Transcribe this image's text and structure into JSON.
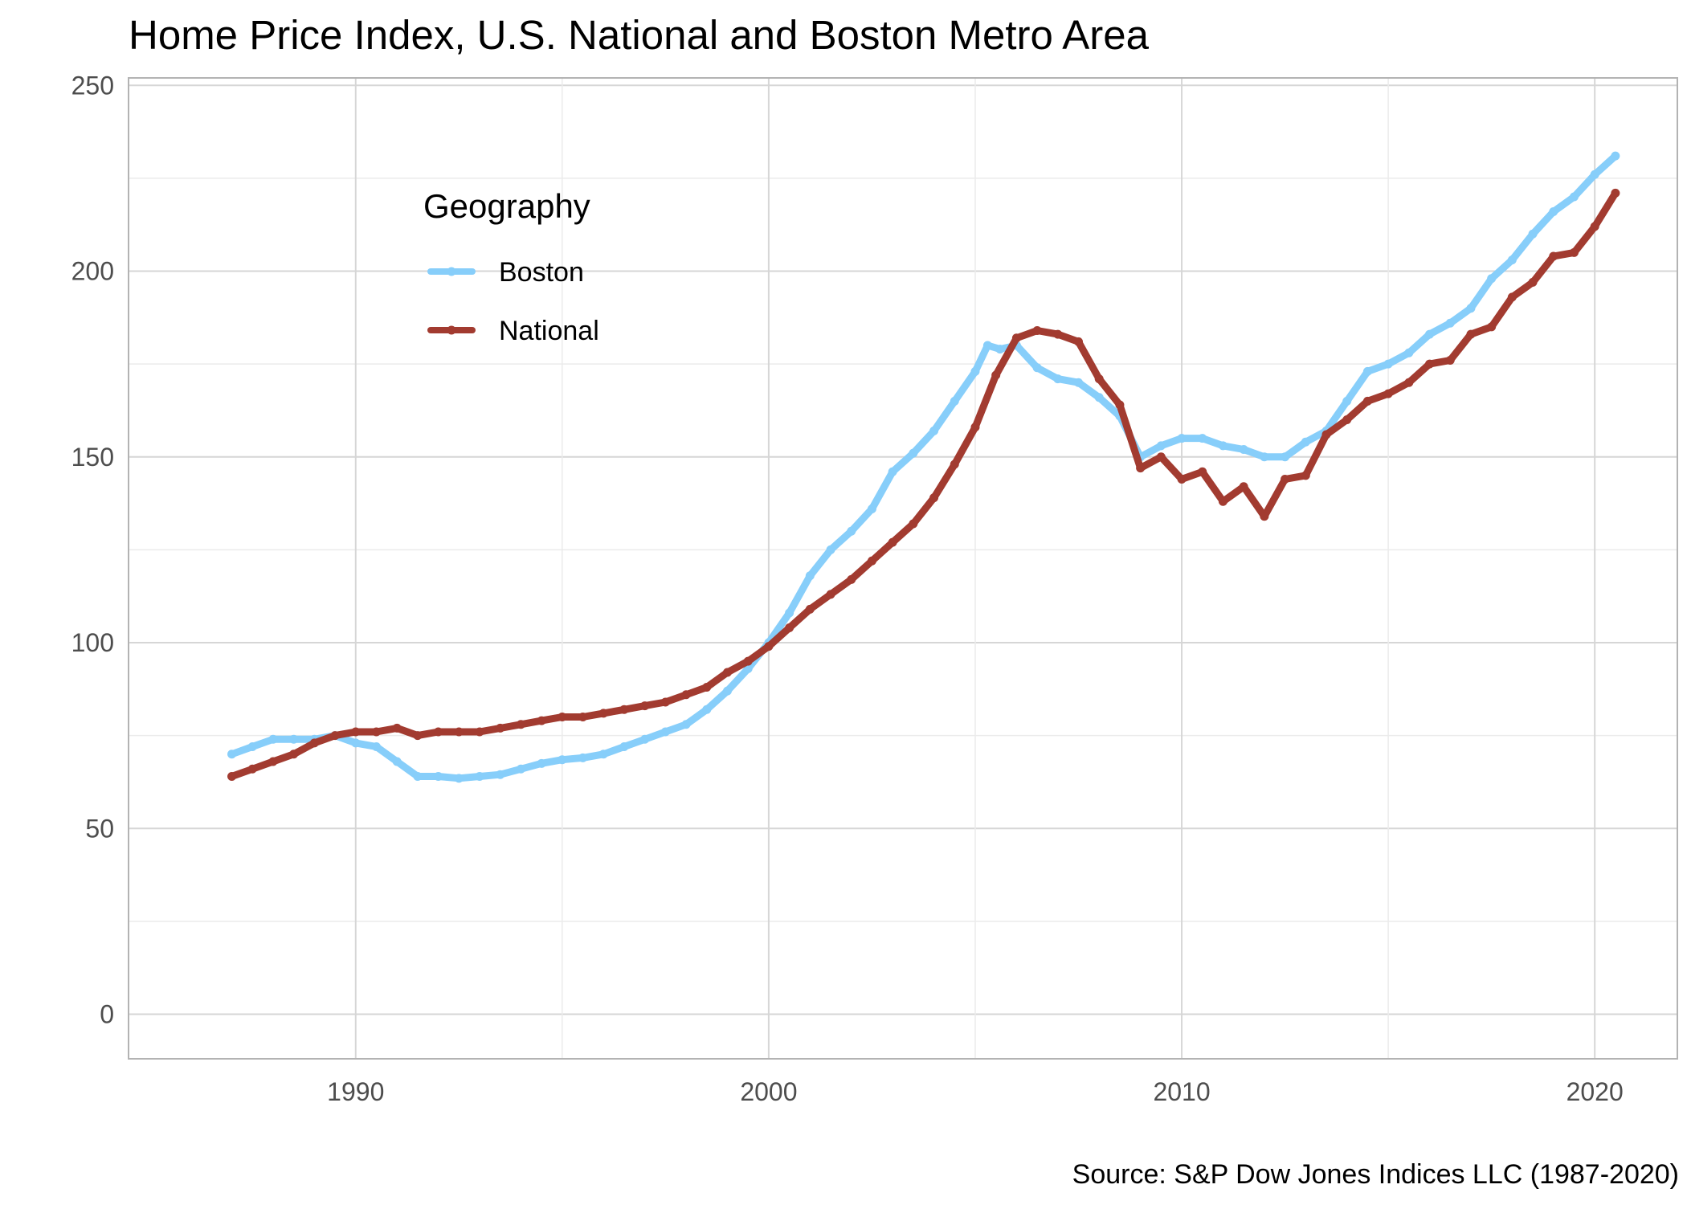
{
  "chart_data": {
    "type": "line",
    "title": "Home Price Index, U.S. National and Boston Metro Area",
    "xlabel": "",
    "ylabel": "",
    "source": "Source: S&P Dow Jones Indices LLC (1987-2020)",
    "xlim": [
      1984.5,
      2022.0
    ],
    "ylim": [
      -12,
      252
    ],
    "xticks": [
      1990,
      2000,
      2010,
      2020
    ],
    "xtick_labels": [
      "1990",
      "2000",
      "2010",
      "2020"
    ],
    "yticks": [
      0,
      50,
      100,
      150,
      200,
      250
    ],
    "ytick_labels": [
      "0",
      "50",
      "100",
      "150",
      "200",
      "250"
    ],
    "grid": true,
    "legend": {
      "title": "Geography",
      "position": "top-left inside"
    },
    "series": [
      {
        "name": "Boston",
        "color": "#87CEFA",
        "x": [
          1987.0,
          1987.5,
          1988.0,
          1988.5,
          1989.0,
          1989.5,
          1990.0,
          1990.5,
          1991.0,
          1991.5,
          1992.0,
          1992.5,
          1993.0,
          1993.5,
          1994.0,
          1994.5,
          1995.0,
          1995.5,
          1996.0,
          1996.5,
          1997.0,
          1997.5,
          1998.0,
          1998.5,
          1999.0,
          1999.5,
          2000.0,
          2000.5,
          2001.0,
          2001.5,
          2002.0,
          2002.5,
          2003.0,
          2003.5,
          2004.0,
          2004.5,
          2005.0,
          2005.3,
          2005.6,
          2006.0,
          2006.5,
          2007.0,
          2007.5,
          2008.0,
          2008.5,
          2009.0,
          2009.5,
          2010.0,
          2010.5,
          2011.0,
          2011.5,
          2012.0,
          2012.5,
          2013.0,
          2013.5,
          2014.0,
          2014.5,
          2015.0,
          2015.5,
          2016.0,
          2016.5,
          2017.0,
          2017.5,
          2018.0,
          2018.5,
          2019.0,
          2019.5,
          2020.0,
          2020.5
        ],
        "values": [
          70,
          72,
          74,
          74,
          74,
          75,
          73,
          72,
          68,
          64,
          64,
          63.5,
          64,
          64.5,
          66,
          67.5,
          68.5,
          69,
          70,
          72,
          74,
          76,
          78,
          82,
          87,
          93,
          100,
          108,
          118,
          125,
          130,
          136,
          146,
          151,
          157,
          165,
          173,
          180,
          179,
          180,
          174,
          171,
          170,
          166,
          161,
          150,
          153,
          155,
          155,
          153,
          152,
          150,
          150,
          154,
          157,
          165,
          173,
          175,
          178,
          183,
          186,
          190,
          198,
          203,
          210,
          216,
          220,
          226,
          231
        ]
      },
      {
        "name": "National",
        "color": "#A23B30",
        "x": [
          1987.0,
          1987.5,
          1988.0,
          1988.5,
          1989.0,
          1989.5,
          1990.0,
          1990.5,
          1991.0,
          1991.5,
          1992.0,
          1992.5,
          1993.0,
          1993.5,
          1994.0,
          1994.5,
          1995.0,
          1995.5,
          1996.0,
          1996.5,
          1997.0,
          1997.5,
          1998.0,
          1998.5,
          1999.0,
          1999.5,
          2000.0,
          2000.5,
          2001.0,
          2001.5,
          2002.0,
          2002.5,
          2003.0,
          2003.5,
          2004.0,
          2004.5,
          2005.0,
          2005.5,
          2006.0,
          2006.5,
          2007.0,
          2007.5,
          2008.0,
          2008.5,
          2009.0,
          2009.5,
          2010.0,
          2010.5,
          2011.0,
          2011.5,
          2012.0,
          2012.5,
          2013.0,
          2013.5,
          2014.0,
          2014.5,
          2015.0,
          2015.5,
          2016.0,
          2016.5,
          2017.0,
          2017.5,
          2018.0,
          2018.5,
          2019.0,
          2019.5,
          2020.0,
          2020.5
        ],
        "values": [
          64,
          66,
          68,
          70,
          73,
          75,
          76,
          76,
          77,
          75,
          76,
          76,
          76,
          77,
          78,
          79,
          80,
          80,
          81,
          82,
          83,
          84,
          86,
          88,
          92,
          95,
          99,
          104,
          109,
          113,
          117,
          122,
          127,
          132,
          139,
          148,
          158,
          172,
          182,
          184,
          183,
          181,
          171,
          164,
          147,
          150,
          144,
          146,
          138,
          142,
          134,
          144,
          145,
          156,
          160,
          165,
          167,
          170,
          175,
          176,
          183,
          185,
          193,
          197,
          204,
          205,
          212,
          221
        ]
      }
    ]
  }
}
